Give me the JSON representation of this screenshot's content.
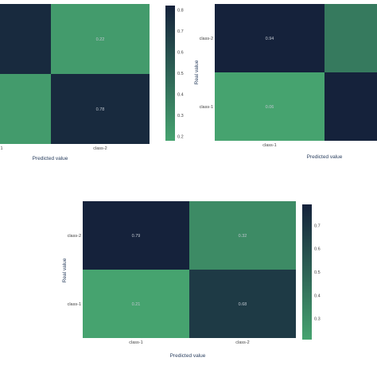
{
  "colors": {
    "light": "#46a36f",
    "dark": "#15223b",
    "label": "#bfc6cf",
    "axis": "#2a3f5f",
    "tick": "#444444"
  },
  "chart_data": [
    {
      "type": "heatmap",
      "x_categories": [
        "class-1",
        "class-2"
      ],
      "y_categories": [
        "class-2",
        "class-1"
      ],
      "values": [
        [
          0.78,
          0.22
        ],
        [
          0.22,
          0.78
        ]
      ],
      "cell_labels": [
        [
          "",
          "0.22"
        ],
        [
          "",
          "0.78"
        ]
      ],
      "x_tick_labels": [
        "1",
        "class-2"
      ],
      "y_tick_labels": [
        "",
        ""
      ],
      "xlabel": "Predicted value",
      "ylabel": "",
      "colorbar": {
        "range": [
          0.18,
          0.82
        ],
        "ticks": [
          "0.8",
          "0.7",
          "0.6",
          "0.5",
          "0.4",
          "0.3",
          "0.2"
        ],
        "tick_values": [
          0.8,
          0.7,
          0.6,
          0.5,
          0.4,
          0.3,
          0.2
        ]
      }
    },
    {
      "type": "heatmap",
      "x_categories": [
        "class-1",
        "class-2"
      ],
      "y_categories": [
        "class-2",
        "class-1"
      ],
      "values": [
        [
          0.94,
          0.34
        ],
        [
          0.06,
          0.94
        ]
      ],
      "cell_labels": [
        [
          "0.94",
          ""
        ],
        [
          "0.06",
          ""
        ]
      ],
      "x_tick_labels": [
        "class-1",
        "c"
      ],
      "y_tick_labels": [
        "class-2",
        "class-1"
      ],
      "xlabel": "Predicted value",
      "ylabel": "Real value",
      "colorbar": null
    },
    {
      "type": "heatmap",
      "x_categories": [
        "class-1",
        "class-2"
      ],
      "y_categories": [
        "class-2",
        "class-1"
      ],
      "values": [
        [
          0.79,
          0.32
        ],
        [
          0.21,
          0.68
        ]
      ],
      "cell_labels": [
        [
          "0.79",
          "0.32"
        ],
        [
          "0.21",
          "0.68"
        ]
      ],
      "x_tick_labels": [
        "class-1",
        "class-2"
      ],
      "y_tick_labels": [
        "class-2",
        "class-1"
      ],
      "xlabel": "Predicted value",
      "ylabel": "Real value",
      "colorbar": {
        "range": [
          0.21,
          0.79
        ],
        "ticks": [
          "0.7",
          "0.6",
          "0.5",
          "0.4",
          "0.3"
        ],
        "tick_values": [
          0.7,
          0.6,
          0.5,
          0.4,
          0.3
        ]
      }
    }
  ]
}
